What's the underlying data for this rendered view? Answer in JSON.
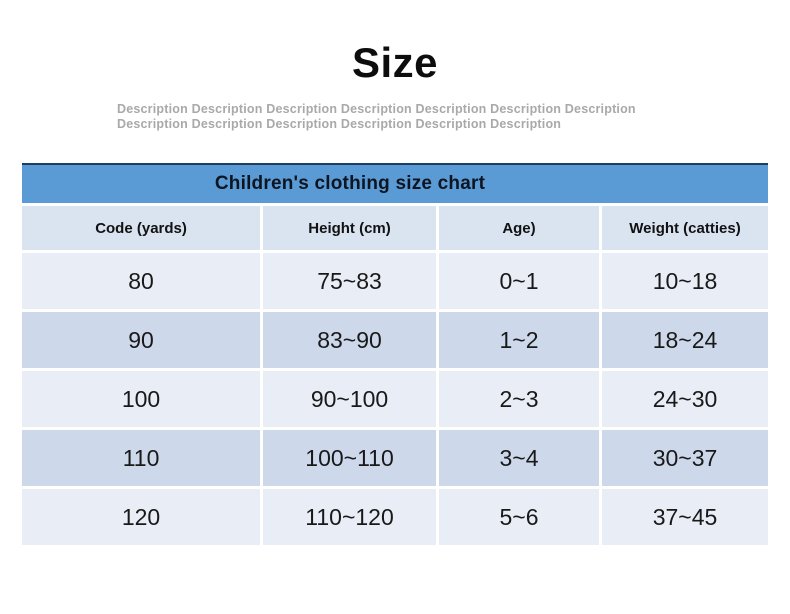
{
  "header": {
    "title": "Size",
    "description_lines": [
      "Description Description Description Description Description Description Description",
      "Description Description Description Description Description Description"
    ]
  },
  "chart_data": {
    "type": "table",
    "title": "Children's clothing size chart",
    "columns": [
      "Code (yards)",
      "Height (cm)",
      "Age)",
      "Weight (catties)"
    ],
    "rows": [
      [
        "80",
        "75~83",
        "0~1",
        "10~18"
      ],
      [
        "90",
        "83~90",
        "1~2",
        "18~24"
      ],
      [
        "100",
        "90~100",
        "2~3",
        "24~30"
      ],
      [
        "110",
        "100~110",
        "3~4",
        "30~37"
      ],
      [
        "120",
        "110~120",
        "5~6",
        "37~45"
      ]
    ],
    "layout": {
      "legend": "none",
      "grid": "banded-rows",
      "title_position": "top-bar"
    },
    "colors": {
      "title_bar_bg": "#5b9bd5",
      "title_bar_top_border": "#1e3e5f",
      "header_row_bg": "#dae3f0",
      "row_light_bg": "#e9eef6",
      "row_dark_bg": "#cdd9eb",
      "table_text": "#191919",
      "title_text": "#0d0d0d",
      "description_text": "#a9a9a9"
    }
  }
}
